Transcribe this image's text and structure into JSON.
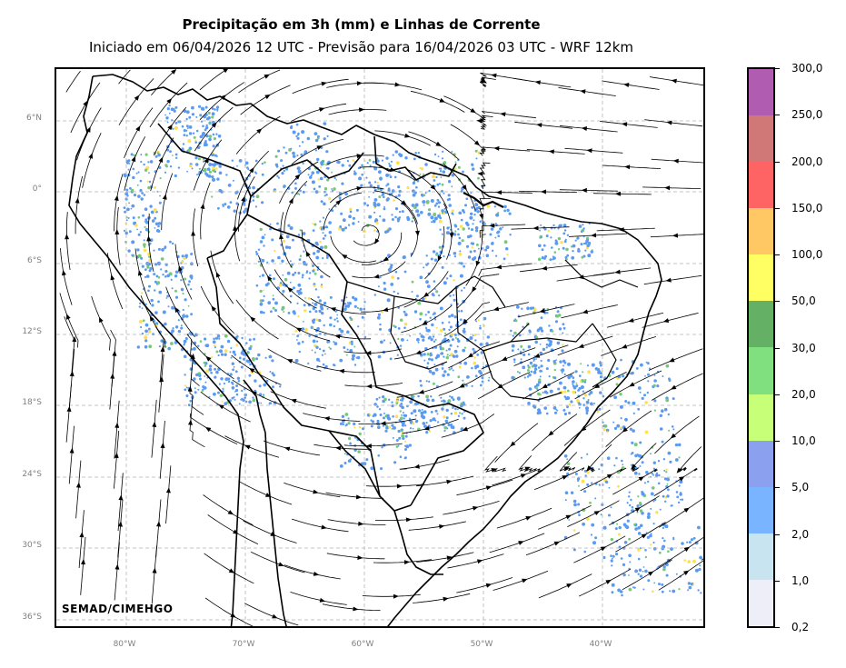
{
  "title": "Precipitação em 3h (mm) e Linhas de Corrente",
  "subtitle": "Iniciado em 06/04/2026 12 UTC - Previsão para 16/04/2026 03 UTC - WRF 12km",
  "credit": "SEMAD/CIMEHGO",
  "lat_labels": [
    "6°N",
    "0°",
    "6°S",
    "12°S",
    "18°S",
    "24°S",
    "30°S",
    "36°S"
  ],
  "lon_labels": [
    "80°W",
    "70°W",
    "60°W",
    "50°W",
    "40°W"
  ],
  "colorbar": {
    "labels": [
      "300,0",
      "250,0",
      "200,0",
      "150,0",
      "100,0",
      "50,0",
      "30,0",
      "20,0",
      "10,0",
      "5,0",
      "2,0",
      "1,0",
      "0,2"
    ],
    "colors": [
      "#b05cb0",
      "#d07878",
      "#ff6464",
      "#ffc864",
      "#ffff64",
      "#64b064",
      "#80e080",
      "#c8ff78",
      "#8ca0f0",
      "#78b4ff",
      "#c8e4f0",
      "#eeeef8"
    ]
  },
  "colors": {
    "rain_light": "#5a9af0",
    "rain_medium": "#78c878",
    "rain_heavy": "#ffe050",
    "grid": "#b4b4b4"
  }
}
